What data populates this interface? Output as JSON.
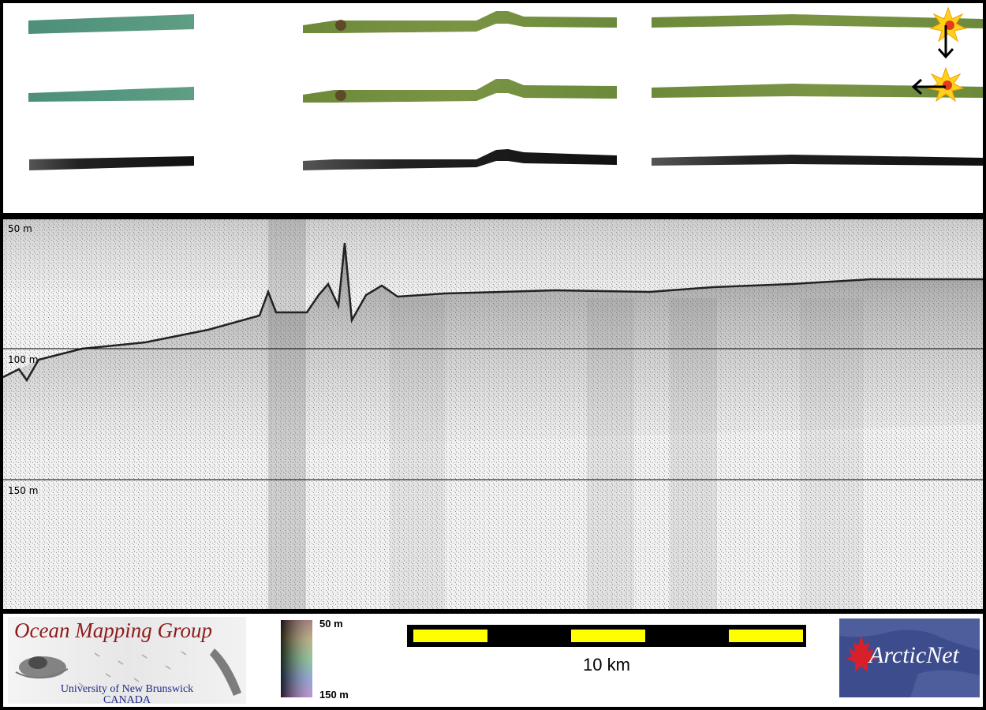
{
  "figure": {
    "top_panel": {
      "rows": [
        {
          "name": "colour-shaded-bathymetry-row",
          "color": "#6a8a3c"
        },
        {
          "name": "colour-shaded-bathymetry-row-2",
          "color": "#6a8a3c"
        },
        {
          "name": "backscatter-row",
          "color": "#1a1a1a"
        }
      ],
      "markers": [
        "star-burst-icon",
        "arrow-down-icon",
        "star-burst-icon",
        "arrow-left-icon"
      ]
    },
    "profile": {
      "depth_labels": [
        "50 m",
        "100 m",
        "150 m"
      ],
      "colors": {
        "background": "#f1f1f1",
        "seabed": "#222222"
      }
    },
    "footer": {
      "omg_logo": {
        "title": "Ocean Mapping Group",
        "line1": "University of New Brunswick",
        "line2": "CANADA"
      },
      "colorbar": {
        "top_label": "50 m",
        "bottom_label": "150 m"
      },
      "scale_bar": {
        "label": "10 km",
        "colors": {
          "fill": "#ffff00",
          "frame": "#000000"
        }
      },
      "arctic_logo": {
        "text": "ArcticNet"
      }
    }
  }
}
